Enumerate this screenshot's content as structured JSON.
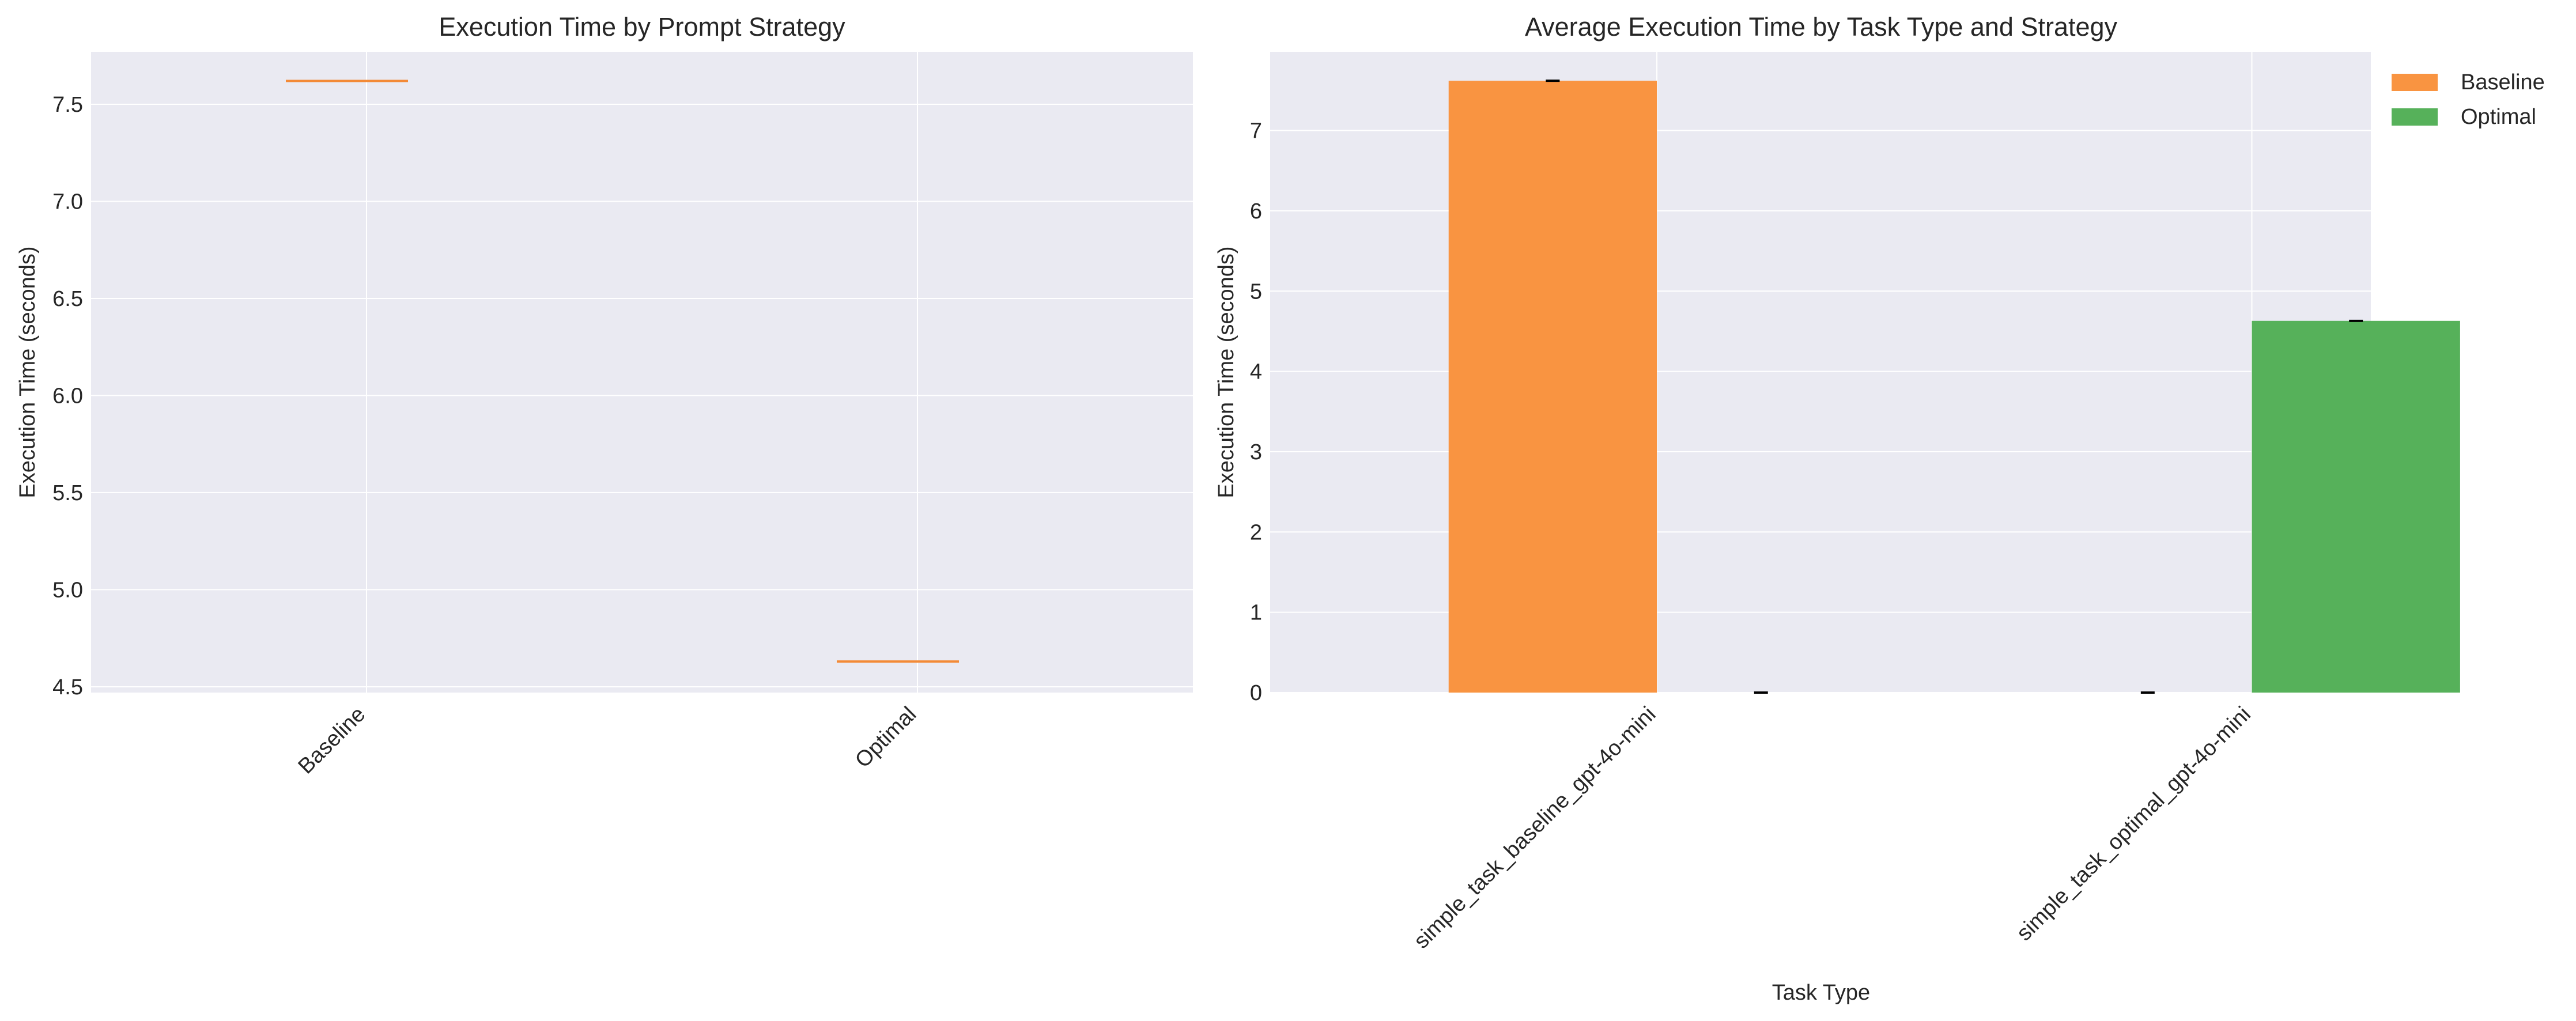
{
  "colors": {
    "plot_bg": "#eaeaf2",
    "grid": "#ffffff",
    "baseline": "#f99441",
    "optimal": "#56b15a",
    "median_line": "#f38a37",
    "text": "#262626",
    "error_bar": "#000000"
  },
  "chart_data": [
    {
      "type": "box",
      "title": "Execution Time by Prompt Strategy",
      "xlabel": "",
      "ylabel": "Execution Time (seconds)",
      "categories": [
        "Baseline",
        "Optimal"
      ],
      "values": [
        7.62,
        4.63
      ],
      "ylim": [
        4.47,
        7.77
      ],
      "yticks": [
        4.5,
        5.0,
        5.5,
        6.0,
        6.5,
        7.0,
        7.5
      ],
      "ytick_labels": [
        "4.5",
        "5.0",
        "5.5",
        "6.0",
        "6.5",
        "7.0",
        "7.5"
      ],
      "grid": true
    },
    {
      "type": "bar",
      "title": "Average Execution Time by Task Type and Strategy",
      "xlabel": "Task Type",
      "ylabel": "Execution Time (seconds)",
      "categories": [
        "simple_task_baseline_gpt-4o-mini",
        "simple_task_optimal_gpt-4o-mini"
      ],
      "series": [
        {
          "name": "Baseline",
          "values": [
            7.62,
            0
          ]
        },
        {
          "name": "Optimal",
          "values": [
            0,
            4.63
          ]
        }
      ],
      "ylim": [
        0,
        7.98
      ],
      "yticks": [
        0,
        1,
        2,
        3,
        4,
        5,
        6,
        7
      ],
      "ytick_labels": [
        "0",
        "1",
        "2",
        "3",
        "4",
        "5",
        "6",
        "7"
      ],
      "legend": [
        "Baseline",
        "Optimal"
      ],
      "legend_position": "outside-top-right",
      "grid": true
    }
  ]
}
